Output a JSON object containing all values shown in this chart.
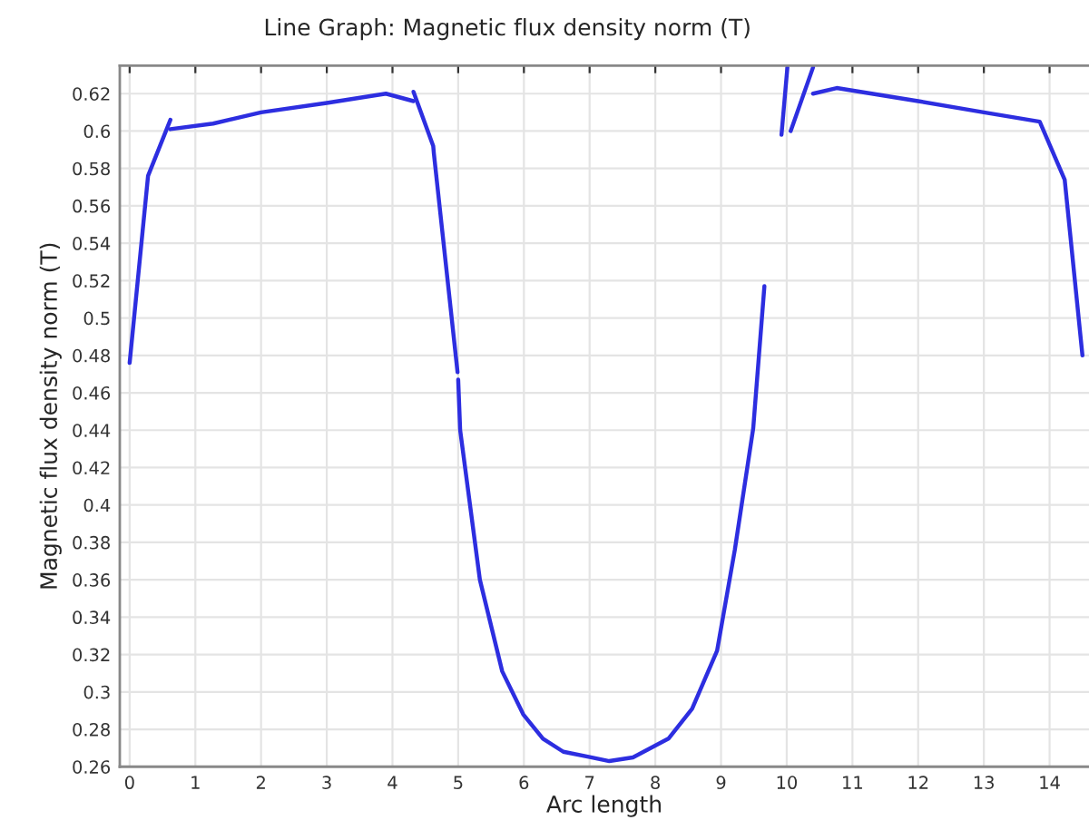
{
  "chart_data": {
    "type": "line",
    "title": "Line Graph: Magnetic flux density norm (T)",
    "xlabel": "Arc length",
    "ylabel": "Magnetic flux density norm (T)",
    "xlim": [
      -0.15,
      14.6
    ],
    "ylim": [
      0.26,
      0.635
    ],
    "xticks": [
      0,
      1,
      2,
      3,
      4,
      5,
      6,
      7,
      8,
      9,
      10,
      11,
      12,
      13,
      14
    ],
    "yticks": [
      0.26,
      0.28,
      0.3,
      0.32,
      0.34,
      0.36,
      0.38,
      0.4,
      0.42,
      0.44,
      0.46,
      0.48,
      0.5,
      0.52,
      0.54,
      0.56,
      0.58,
      0.6,
      0.62
    ],
    "grid": true,
    "line_style": "solid",
    "marker": "none",
    "series": [
      {
        "color": "#2d2ee0",
        "x": [
          0.0,
          0.28,
          0.62
        ],
        "values": [
          0.476,
          0.576,
          0.606
        ]
      },
      {
        "color": "#2d2ee0",
        "x": [
          0.62,
          1.27,
          2.0,
          3.0,
          3.9,
          4.32
        ],
        "values": [
          0.601,
          0.604,
          0.61,
          0.615,
          0.62,
          0.616
        ]
      },
      {
        "color": "#2d2ee0",
        "x": [
          4.32,
          4.62,
          4.63,
          4.99
        ],
        "values": [
          0.621,
          0.592,
          0.588,
          0.471
        ]
      },
      {
        "color": "#2d2ee0",
        "x": [
          5.0,
          5.03,
          5.33,
          5.67,
          5.99,
          6.29,
          6.6,
          7.02,
          7.3,
          7.66,
          8.2,
          8.56,
          8.94,
          9.21,
          9.49,
          9.66
        ],
        "values": [
          0.467,
          0.44,
          0.36,
          0.311,
          0.288,
          0.275,
          0.268,
          0.265,
          0.263,
          0.265,
          0.275,
          0.291,
          0.322,
          0.376,
          0.441,
          0.517
        ]
      },
      {
        "color": "#2d2ee0",
        "x": [
          9.92,
          10.01
        ],
        "values": [
          0.598,
          0.634
        ]
      },
      {
        "color": "#2d2ee0",
        "x": [
          10.06,
          10.4
        ],
        "values": [
          0.6,
          0.634
        ]
      },
      {
        "color": "#2d2ee0",
        "x": [
          10.4,
          10.76,
          12.0,
          13.0,
          13.85,
          14.23,
          14.5
        ],
        "values": [
          0.62,
          0.623,
          0.616,
          0.61,
          0.605,
          0.574,
          0.48
        ]
      }
    ]
  }
}
